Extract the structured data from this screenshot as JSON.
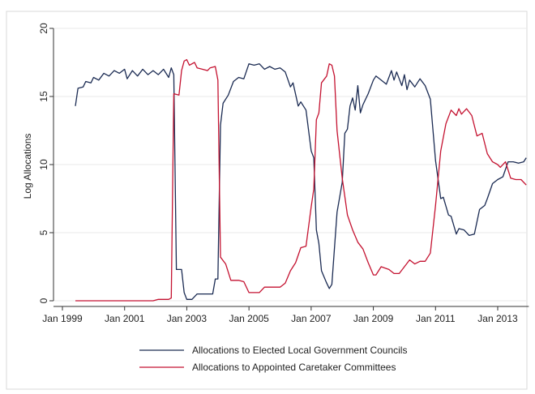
{
  "chart_data": {
    "type": "line",
    "ylabel": "Log Allocations",
    "xlabel": "",
    "ylim": [
      0,
      20
    ],
    "y_ticks": [
      0,
      5,
      10,
      15,
      20
    ],
    "x_range": [
      "1999-03",
      "2014-01"
    ],
    "x_ticks": [
      {
        "date": "1999-01",
        "label": "Jan 1999"
      },
      {
        "date": "2001-01",
        "label": "Jan 2001"
      },
      {
        "date": "2003-01",
        "label": "Jan 2003"
      },
      {
        "date": "2005-01",
        "label": "Jan 2005"
      },
      {
        "date": "2007-01",
        "label": "Jan 2007"
      },
      {
        "date": "2009-01",
        "label": "Jan 2009"
      },
      {
        "date": "2011-01",
        "label": "Jan 2011"
      },
      {
        "date": "2013-01",
        "label": "Jan 2013"
      }
    ],
    "grid": "horizontal",
    "legend_position": "bottom",
    "colors": {
      "series1": "#1a2a52",
      "series2": "#c41230",
      "grid": "#e8e8e8",
      "frame": "#d8d8d8"
    },
    "series": [
      {
        "name": "Allocations to Elected Local Government Councils",
        "points": [
          [
            "1999-06",
            14.3
          ],
          [
            "1999-07",
            15.6
          ],
          [
            "1999-09",
            15.7
          ],
          [
            "1999-10",
            16.1
          ],
          [
            "1999-12",
            16.0
          ],
          [
            "2000-01",
            16.4
          ],
          [
            "2000-03",
            16.2
          ],
          [
            "2000-05",
            16.7
          ],
          [
            "2000-07",
            16.5
          ],
          [
            "2000-09",
            16.9
          ],
          [
            "2000-11",
            16.7
          ],
          [
            "2001-01",
            17.0
          ],
          [
            "2001-02",
            16.3
          ],
          [
            "2001-04",
            16.9
          ],
          [
            "2001-06",
            16.5
          ],
          [
            "2001-08",
            17.0
          ],
          [
            "2001-10",
            16.6
          ],
          [
            "2001-12",
            16.9
          ],
          [
            "2002-02",
            16.6
          ],
          [
            "2002-04",
            17.0
          ],
          [
            "2002-06",
            16.4
          ],
          [
            "2002-07",
            17.1
          ],
          [
            "2002-08",
            16.6
          ],
          [
            "2002-09",
            2.3
          ],
          [
            "2002-11",
            2.3
          ],
          [
            "2002-12",
            0.6
          ],
          [
            "2003-01",
            0.1
          ],
          [
            "2003-03",
            0.1
          ],
          [
            "2003-05",
            0.5
          ],
          [
            "2003-08",
            0.5
          ],
          [
            "2003-11",
            0.5
          ],
          [
            "2003-12",
            1.6
          ],
          [
            "2004-01",
            1.6
          ],
          [
            "2004-02",
            12.9
          ],
          [
            "2004-03",
            14.5
          ],
          [
            "2004-05",
            15.1
          ],
          [
            "2004-07",
            16.1
          ],
          [
            "2004-09",
            16.4
          ],
          [
            "2004-11",
            16.3
          ],
          [
            "2005-01",
            17.4
          ],
          [
            "2005-03",
            17.3
          ],
          [
            "2005-05",
            17.4
          ],
          [
            "2005-07",
            17.0
          ],
          [
            "2005-09",
            17.2
          ],
          [
            "2005-11",
            17.0
          ],
          [
            "2006-01",
            17.1
          ],
          [
            "2006-03",
            16.8
          ],
          [
            "2006-05",
            15.7
          ],
          [
            "2006-06",
            16.0
          ],
          [
            "2006-08",
            14.3
          ],
          [
            "2006-09",
            14.6
          ],
          [
            "2006-11",
            14.0
          ],
          [
            "2007-01",
            11.0
          ],
          [
            "2007-02",
            10.5
          ],
          [
            "2007-03",
            5.2
          ],
          [
            "2007-04",
            4.2
          ],
          [
            "2007-05",
            2.2
          ],
          [
            "2007-07",
            1.3
          ],
          [
            "2007-08",
            0.9
          ],
          [
            "2007-09",
            1.2
          ],
          [
            "2007-11",
            6.5
          ],
          [
            "2008-01",
            8.7
          ],
          [
            "2008-02",
            12.3
          ],
          [
            "2008-03",
            12.6
          ],
          [
            "2008-04",
            14.3
          ],
          [
            "2008-05",
            14.9
          ],
          [
            "2008-06",
            14.0
          ],
          [
            "2008-07",
            15.8
          ],
          [
            "2008-08",
            13.8
          ],
          [
            "2008-09",
            14.4
          ],
          [
            "2008-11",
            15.2
          ],
          [
            "2009-01",
            16.2
          ],
          [
            "2009-02",
            16.5
          ],
          [
            "2009-04",
            16.2
          ],
          [
            "2009-06",
            15.9
          ],
          [
            "2009-08",
            16.9
          ],
          [
            "2009-09",
            16.2
          ],
          [
            "2009-10",
            16.8
          ],
          [
            "2009-12",
            15.8
          ],
          [
            "2010-01",
            16.6
          ],
          [
            "2010-02",
            15.5
          ],
          [
            "2010-03",
            16.2
          ],
          [
            "2010-05",
            15.7
          ],
          [
            "2010-07",
            16.3
          ],
          [
            "2010-09",
            15.8
          ],
          [
            "2010-11",
            14.8
          ],
          [
            "2011-01",
            10.3
          ],
          [
            "2011-03",
            7.5
          ],
          [
            "2011-04",
            7.6
          ],
          [
            "2011-06",
            6.3
          ],
          [
            "2011-07",
            6.2
          ],
          [
            "2011-09",
            4.9
          ],
          [
            "2011-10",
            5.3
          ],
          [
            "2011-12",
            5.2
          ],
          [
            "2012-02",
            4.8
          ],
          [
            "2012-04",
            4.9
          ],
          [
            "2012-06",
            6.7
          ],
          [
            "2012-08",
            7.0
          ],
          [
            "2012-09",
            7.5
          ],
          [
            "2012-11",
            8.6
          ],
          [
            "2013-01",
            8.9
          ],
          [
            "2013-03",
            9.1
          ],
          [
            "2013-05",
            10.2
          ],
          [
            "2013-07",
            10.2
          ],
          [
            "2013-09",
            10.1
          ],
          [
            "2013-11",
            10.2
          ],
          [
            "2013-12",
            10.5
          ]
        ]
      },
      {
        "name": "Allocations to Appointed Caretaker Committees",
        "points": [
          [
            "1999-06",
            0.0
          ],
          [
            "2001-12",
            0.0
          ],
          [
            "2002-02",
            0.1
          ],
          [
            "2002-06",
            0.1
          ],
          [
            "2002-07",
            0.2
          ],
          [
            "2002-08",
            15.2
          ],
          [
            "2002-10",
            15.1
          ],
          [
            "2002-11",
            16.9
          ],
          [
            "2002-12",
            17.6
          ],
          [
            "2003-01",
            17.7
          ],
          [
            "2003-02",
            17.3
          ],
          [
            "2003-04",
            17.5
          ],
          [
            "2003-05",
            17.1
          ],
          [
            "2003-07",
            17.0
          ],
          [
            "2003-09",
            16.9
          ],
          [
            "2003-10",
            17.1
          ],
          [
            "2003-12",
            17.2
          ],
          [
            "2004-01",
            16.2
          ],
          [
            "2004-02",
            3.2
          ],
          [
            "2004-04",
            2.7
          ],
          [
            "2004-06",
            1.5
          ],
          [
            "2004-09",
            1.5
          ],
          [
            "2004-11",
            1.4
          ],
          [
            "2005-01",
            0.6
          ],
          [
            "2005-05",
            0.6
          ],
          [
            "2005-07",
            1.0
          ],
          [
            "2006-01",
            1.0
          ],
          [
            "2006-03",
            1.3
          ],
          [
            "2006-05",
            2.2
          ],
          [
            "2006-07",
            2.8
          ],
          [
            "2006-09",
            3.9
          ],
          [
            "2006-11",
            4.0
          ],
          [
            "2007-01",
            6.9
          ],
          [
            "2007-02",
            8.2
          ],
          [
            "2007-03",
            13.3
          ],
          [
            "2007-04",
            13.8
          ],
          [
            "2007-05",
            16.0
          ],
          [
            "2007-07",
            16.5
          ],
          [
            "2007-08",
            17.4
          ],
          [
            "2007-09",
            17.3
          ],
          [
            "2007-10",
            16.5
          ],
          [
            "2007-11",
            12.5
          ],
          [
            "2008-01",
            9.0
          ],
          [
            "2008-03",
            6.3
          ],
          [
            "2008-05",
            5.2
          ],
          [
            "2008-07",
            4.3
          ],
          [
            "2008-09",
            3.8
          ],
          [
            "2008-11",
            2.8
          ],
          [
            "2009-01",
            1.9
          ],
          [
            "2009-02",
            1.9
          ],
          [
            "2009-04",
            2.5
          ],
          [
            "2009-07",
            2.3
          ],
          [
            "2009-09",
            2.0
          ],
          [
            "2009-11",
            2.0
          ],
          [
            "2010-01",
            2.5
          ],
          [
            "2010-03",
            3.0
          ],
          [
            "2010-05",
            2.7
          ],
          [
            "2010-07",
            2.9
          ],
          [
            "2010-09",
            2.9
          ],
          [
            "2010-11",
            3.5
          ],
          [
            "2011-01",
            7.0
          ],
          [
            "2011-02",
            9.0
          ],
          [
            "2011-03",
            11.0
          ],
          [
            "2011-05",
            13.0
          ],
          [
            "2011-07",
            14.0
          ],
          [
            "2011-09",
            13.6
          ],
          [
            "2011-10",
            14.1
          ],
          [
            "2011-11",
            13.7
          ],
          [
            "2012-01",
            14.1
          ],
          [
            "2012-03",
            13.6
          ],
          [
            "2012-05",
            12.1
          ],
          [
            "2012-07",
            12.3
          ],
          [
            "2012-09",
            10.8
          ],
          [
            "2012-11",
            10.2
          ],
          [
            "2013-01",
            10.0
          ],
          [
            "2013-02",
            9.8
          ],
          [
            "2013-04",
            10.2
          ],
          [
            "2013-06",
            9.0
          ],
          [
            "2013-08",
            8.9
          ],
          [
            "2013-10",
            8.9
          ],
          [
            "2013-12",
            8.5
          ]
        ]
      }
    ]
  }
}
